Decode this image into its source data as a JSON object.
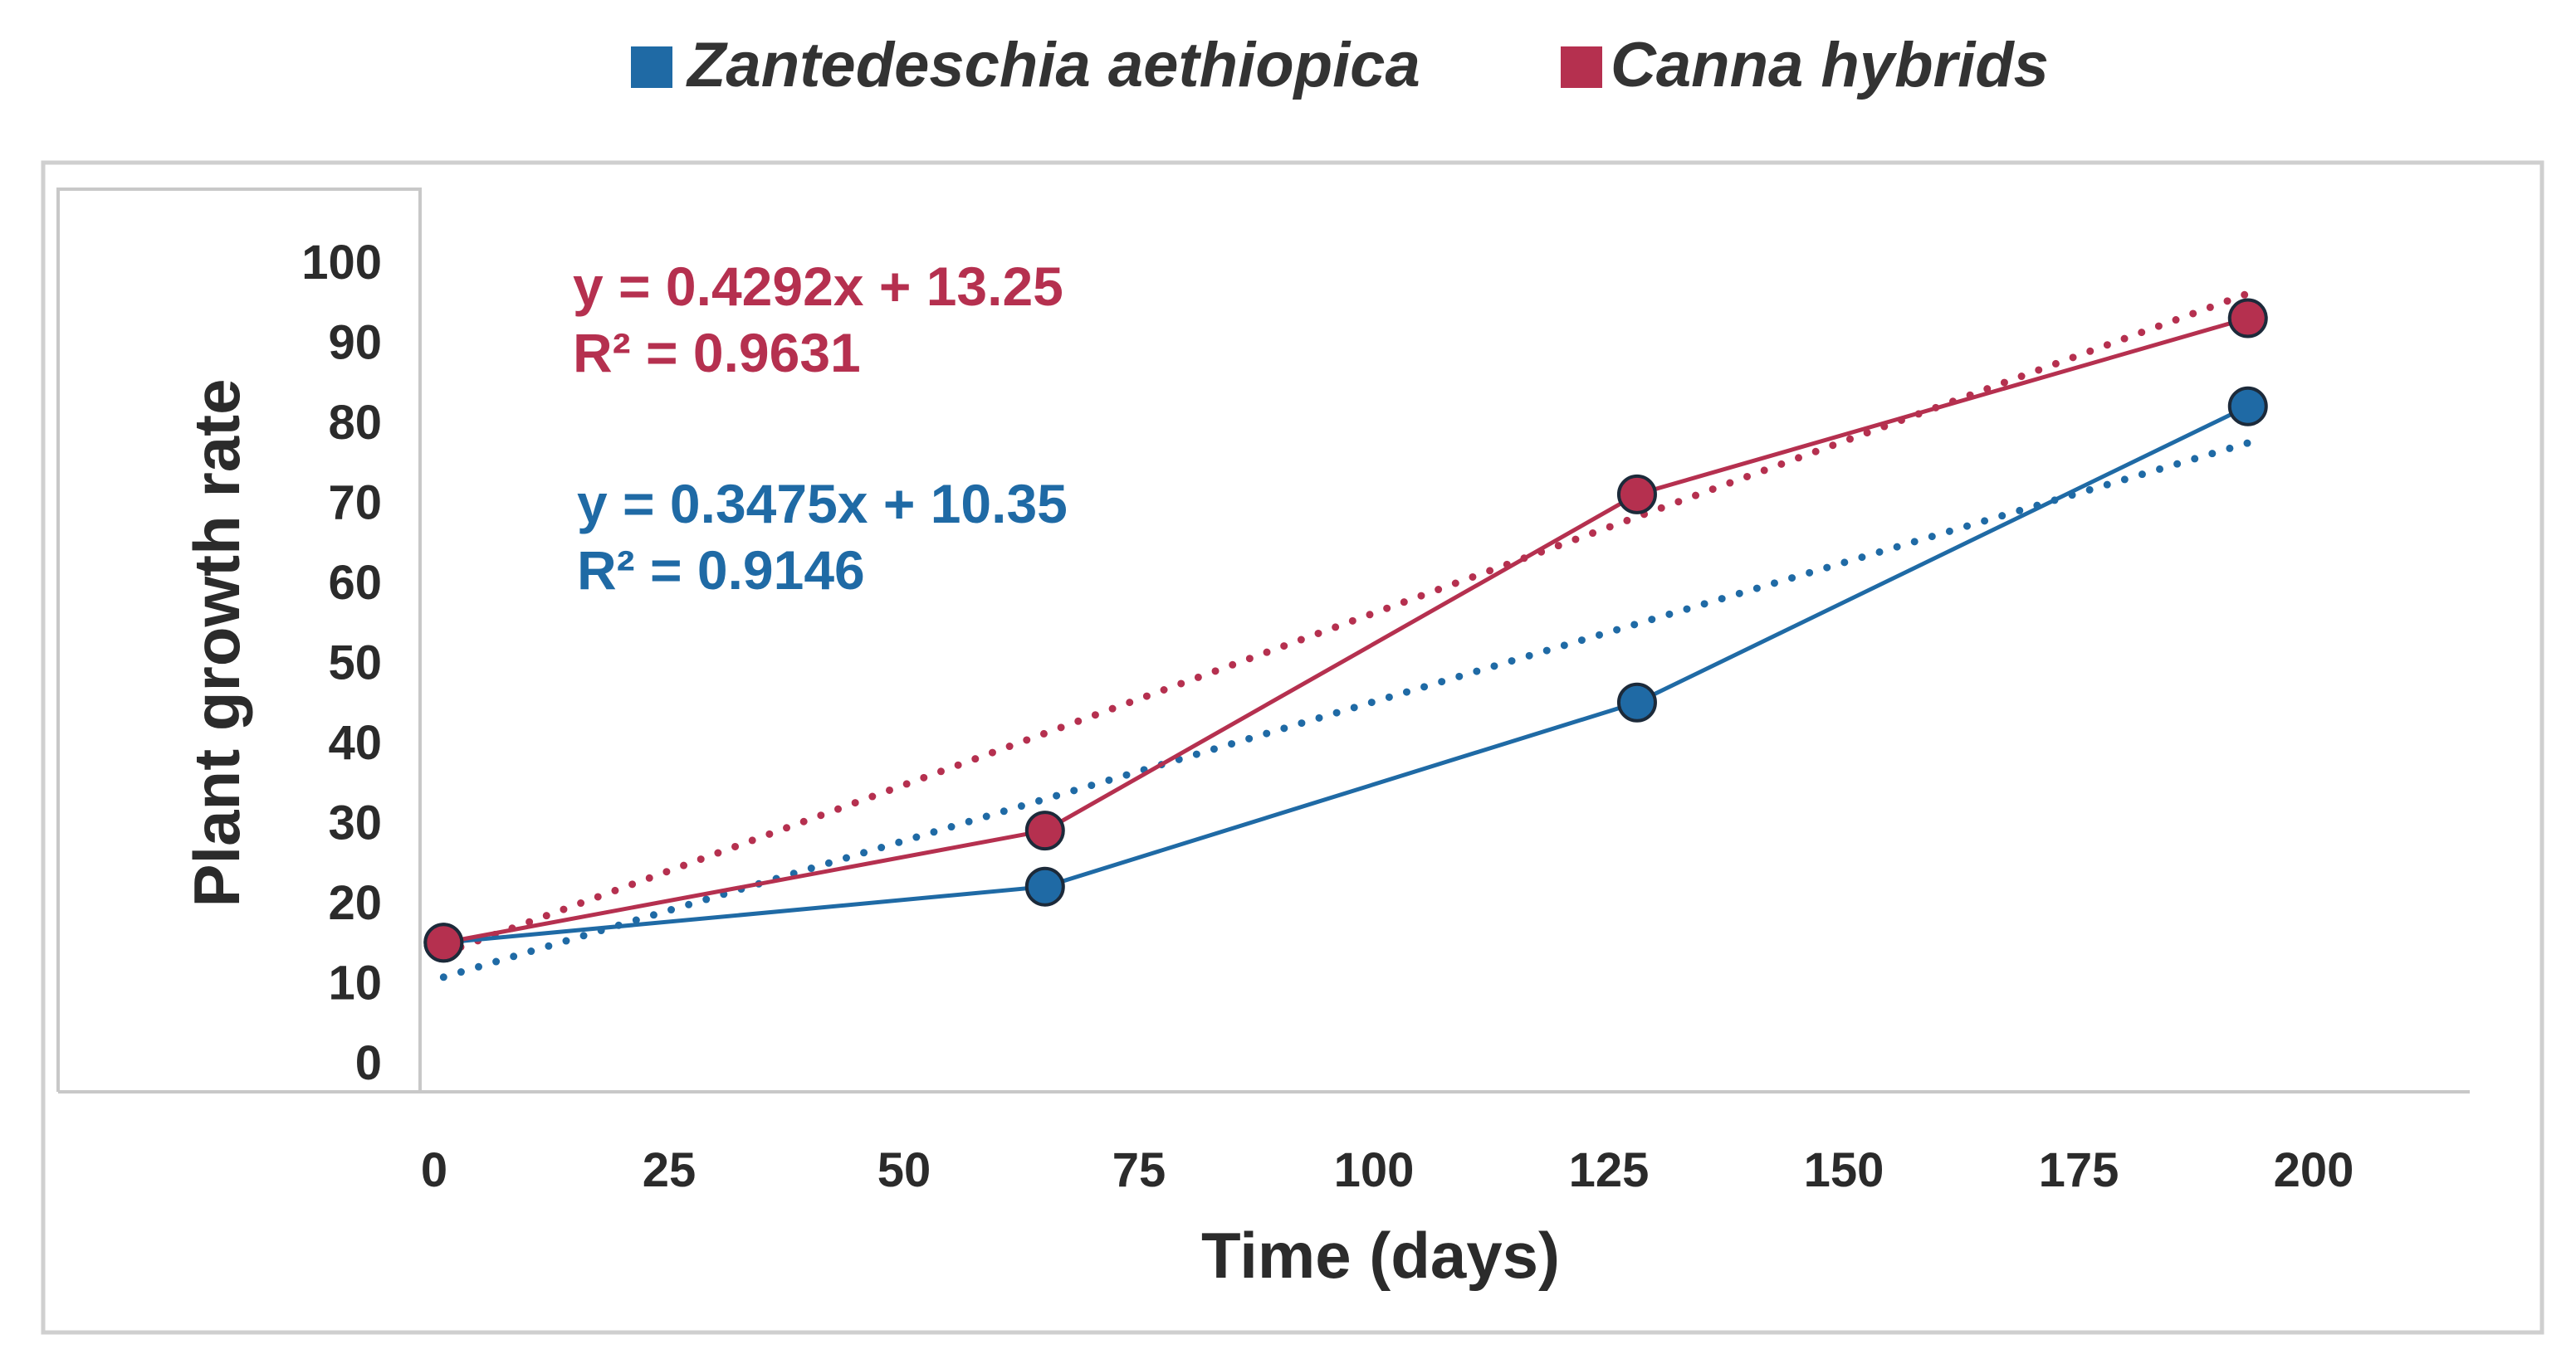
{
  "chart_data": {
    "type": "line",
    "title": "",
    "xlabel": "Time (days)",
    "ylabel": "Plant growth rate",
    "xlim": [
      0,
      200
    ],
    "ylim": [
      0,
      100
    ],
    "x_ticks": [
      0,
      25,
      50,
      75,
      100,
      125,
      150,
      175,
      200
    ],
    "y_ticks": [
      0,
      10,
      20,
      30,
      40,
      50,
      60,
      70,
      80,
      90,
      100
    ],
    "grid": false,
    "legend_position": "top",
    "series": [
      {
        "name": "Zantedeschia aethiopica",
        "color": "#1f6aa5",
        "x": [
          1,
          65,
          128,
          193
        ],
        "y": [
          15,
          22,
          45,
          82
        ],
        "trendline": {
          "slope": 0.3475,
          "intercept": 10.35,
          "equation": "y = 0.3475x + 10.35",
          "r2": "R² = 0.9146"
        }
      },
      {
        "name": "Canna hybrids",
        "color": "#b5304f",
        "x": [
          1,
          65,
          128,
          193
        ],
        "y": [
          15,
          29,
          71,
          93
        ],
        "trendline": {
          "slope": 0.4292,
          "intercept": 13.25,
          "equation": "y = 0.4292x + 13.25",
          "r2": "R² = 0.9631"
        }
      }
    ]
  }
}
